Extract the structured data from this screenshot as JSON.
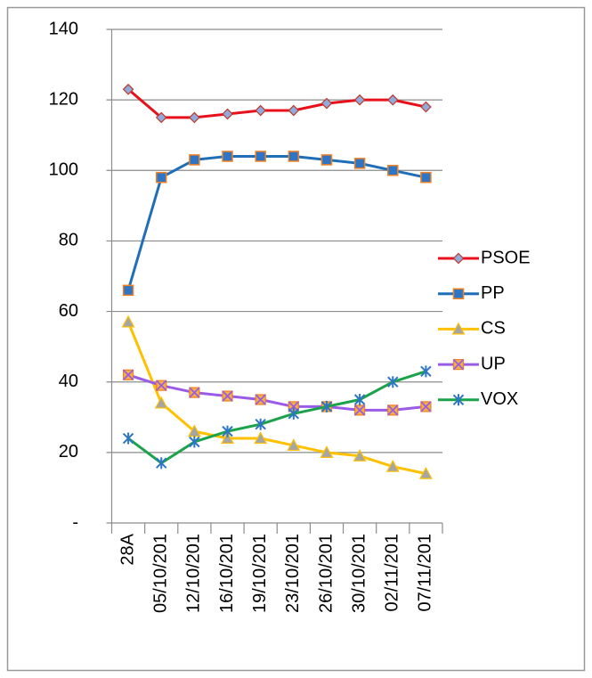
{
  "chart_data": {
    "type": "line",
    "categories": [
      "28A",
      "05/10/201",
      "12/10/201",
      "16/10/201",
      "19/10/201",
      "23/10/201",
      "26/10/201",
      "30/10/201",
      "02/11/201",
      "07/11/201"
    ],
    "series": [
      {
        "name": "PSOE",
        "color": "#e8101a",
        "marker": "diamond",
        "values": [
          123,
          115,
          115,
          116,
          117,
          117,
          119,
          120,
          120,
          118
        ]
      },
      {
        "name": "PP",
        "color": "#1f6fb8",
        "marker": "square",
        "values": [
          66,
          98,
          103,
          104,
          104,
          104,
          103,
          102,
          100,
          98
        ]
      },
      {
        "name": "CS",
        "color": "#ffc000",
        "marker": "triangle",
        "values": [
          57,
          34,
          26,
          24,
          24,
          22,
          20,
          19,
          16,
          14
        ]
      },
      {
        "name": "UP",
        "color": "#9a5ce8",
        "marker": "xsquare",
        "values": [
          42,
          39,
          37,
          36,
          35,
          33,
          33,
          32,
          32,
          33
        ]
      },
      {
        "name": "VOX",
        "color": "#1aa34a",
        "marker": "star",
        "values": [
          24,
          17,
          23,
          26,
          28,
          31,
          33,
          35,
          40,
          43
        ]
      }
    ],
    "ylim": [
      0,
      140
    ],
    "yticks": [
      {
        "value": 0,
        "label": "-"
      },
      20,
      40,
      60,
      80,
      100,
      120,
      140
    ],
    "grid": true,
    "legend": "right"
  }
}
